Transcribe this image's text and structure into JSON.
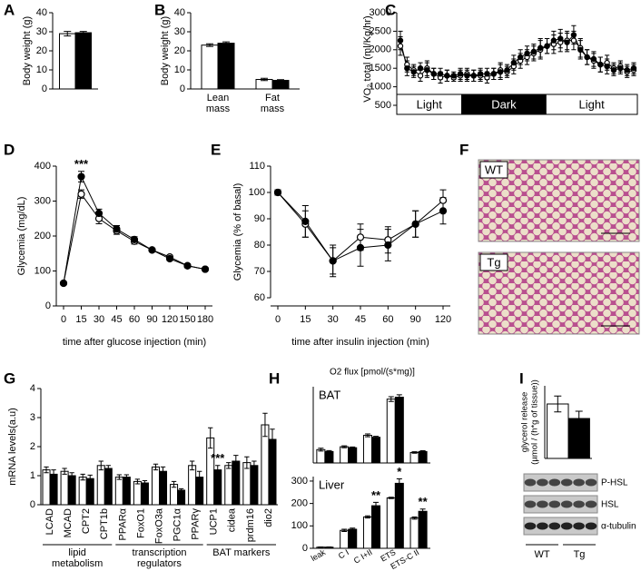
{
  "chart_data": [
    {
      "panel": "A",
      "type": "bar",
      "ylabel": "Body weight (g)",
      "ylim": [
        0,
        40
      ],
      "yticks": [
        0,
        10,
        20,
        30,
        40
      ],
      "series": [
        {
          "color": "#ffffff",
          "values": [
            29
          ],
          "errors": [
            1.2
          ]
        },
        {
          "color": "#000000",
          "values": [
            29.5
          ],
          "errors": [
            0.7
          ]
        }
      ]
    },
    {
      "panel": "B",
      "type": "bar",
      "ylabel": "Body weight (g)",
      "ylim": [
        0,
        40
      ],
      "yticks": [
        0,
        10,
        20,
        30,
        40
      ],
      "categories": [
        "Lean mass",
        "Fat mass"
      ],
      "series": [
        {
          "color": "#ffffff",
          "values": [
            23,
            5
          ],
          "errors": [
            0.7,
            0.6
          ]
        },
        {
          "color": "#000000",
          "values": [
            24,
            4.5
          ],
          "errors": [
            0.7,
            0.4
          ]
        }
      ]
    },
    {
      "panel": "C",
      "type": "line",
      "ylabel": "VO₂ total (ml/Kg/hr)",
      "ylim": [
        500,
        3000
      ],
      "yticks": [
        500,
        1000,
        1500,
        2000,
        2500,
        3000
      ],
      "phases": [
        "Light",
        "Dark",
        "Light"
      ],
      "series": [
        {
          "color": "#ffffff",
          "values": [
            2100,
            1600,
            1450,
            1300,
            1500,
            1350,
            1250,
            1300,
            1250,
            1300,
            1350,
            1300,
            1300,
            1250,
            1350,
            1450,
            1400,
            1550,
            1700,
            1800,
            1900,
            2000,
            2100,
            2150,
            2200,
            2250,
            2250,
            2050,
            1800,
            1700,
            1600,
            1650,
            1500,
            1550,
            1400,
            1450
          ],
          "errors": [
            250,
            200,
            150,
            150,
            200,
            150,
            150,
            150,
            100,
            150,
            150,
            150,
            150,
            150,
            150,
            200,
            150,
            200,
            200,
            200,
            200,
            250,
            200,
            250,
            250,
            250,
            250,
            250,
            200,
            200,
            200,
            200,
            150,
            150,
            150,
            150
          ]
        },
        {
          "color": "#000000",
          "values": [
            2250,
            1500,
            1400,
            1500,
            1450,
            1350,
            1350,
            1300,
            1300,
            1350,
            1300,
            1300,
            1350,
            1350,
            1350,
            1400,
            1450,
            1650,
            1800,
            1900,
            1950,
            2050,
            2100,
            2250,
            2300,
            2200,
            2400,
            2000,
            1800,
            1750,
            1600,
            1550,
            1450,
            1500,
            1450,
            1500
          ],
          "errors": [
            250,
            200,
            150,
            150,
            200,
            150,
            150,
            150,
            100,
            150,
            150,
            150,
            150,
            150,
            150,
            200,
            150,
            200,
            200,
            200,
            200,
            250,
            200,
            250,
            250,
            250,
            250,
            250,
            200,
            200,
            200,
            200,
            150,
            150,
            150,
            150
          ]
        }
      ]
    },
    {
      "panel": "D",
      "type": "line",
      "ylabel": "Glycemia (mg/dL)",
      "xlabel": "time after glucose injection (min)",
      "ylim": [
        0,
        400
      ],
      "yticks": [
        0,
        100,
        200,
        300,
        400
      ],
      "categories": [
        "0",
        "15",
        "30",
        "45",
        "60",
        "90",
        "120",
        "150",
        "180"
      ],
      "annotations": [
        {
          "text": "***",
          "category": "15"
        }
      ],
      "series": [
        {
          "color": "#ffffff",
          "values": [
            65,
            320,
            250,
            215,
            185,
            160,
            140,
            115,
            105
          ],
          "errors": [
            5,
            12,
            15,
            10,
            8,
            5,
            5,
            5,
            5
          ]
        },
        {
          "color": "#000000",
          "values": [
            65,
            370,
            265,
            220,
            190,
            160,
            135,
            115,
            105
          ],
          "errors": [
            5,
            15,
            12,
            10,
            8,
            5,
            5,
            5,
            5
          ]
        }
      ]
    },
    {
      "panel": "E",
      "type": "line",
      "ylabel": "Glycemia (% of basal)",
      "xlabel": "time after insulin injection (min)",
      "ylim": [
        60,
        110
      ],
      "yticks": [
        60,
        70,
        80,
        90,
        100,
        110
      ],
      "categories": [
        "0",
        "15",
        "30",
        "45",
        "60",
        "90",
        "120"
      ],
      "series": [
        {
          "color": "#ffffff",
          "values": [
            100,
            88,
            74,
            83,
            82,
            88,
            97
          ],
          "errors": [
            1,
            5,
            5,
            5,
            5,
            5,
            4
          ]
        },
        {
          "color": "#000000",
          "values": [
            100,
            89,
            74,
            79,
            80,
            88,
            93
          ],
          "errors": [
            1,
            6,
            6,
            7,
            6,
            5,
            5
          ]
        }
      ]
    },
    {
      "panel": "F",
      "type": "image",
      "panels": [
        "WT",
        "Tg"
      ]
    },
    {
      "panel": "G",
      "type": "bar",
      "ylabel": "mRNA levels(a.u)",
      "ylim": [
        0,
        4
      ],
      "yticks": [
        0,
        1,
        2,
        3,
        4
      ],
      "categories": [
        "LCAD",
        "MCAD",
        "CPT2",
        "CPT1b",
        "PPARα",
        "FoxO1",
        "FoxO3a",
        "PGC1α",
        "PPARγ",
        "UCP1",
        "cidea",
        "prdm16",
        "dio2"
      ],
      "groups": [
        {
          "label": "lipid metabolism",
          "from": "LCAD",
          "to": "CPT1b"
        },
        {
          "label": "transcription regulators",
          "from": "PPARα",
          "to": "PPARγ"
        },
        {
          "label": "BAT markers",
          "from": "UCP1",
          "to": "dio2"
        }
      ],
      "annotations": [
        {
          "text": "***",
          "category": "UCP1"
        }
      ],
      "series": [
        {
          "color": "#ffffff",
          "values": [
            1.2,
            1.15,
            0.95,
            1.35,
            0.95,
            0.8,
            1.3,
            0.7,
            1.35,
            2.3,
            1.35,
            1.45,
            2.75
          ],
          "errors": [
            0.1,
            0.1,
            0.1,
            0.15,
            0.08,
            0.08,
            0.1,
            0.1,
            0.15,
            0.35,
            0.1,
            0.2,
            0.4
          ]
        },
        {
          "color": "#000000",
          "values": [
            1.05,
            1.0,
            0.9,
            1.25,
            0.95,
            0.75,
            1.15,
            0.5,
            0.95,
            1.2,
            1.5,
            1.35,
            2.25
          ],
          "errors": [
            0.15,
            0.1,
            0.12,
            0.1,
            0.08,
            0.08,
            0.15,
            0.05,
            0.2,
            0.15,
            0.2,
            0.15,
            0.35
          ]
        }
      ]
    },
    {
      "panel": "H",
      "type": "bar",
      "title": "O2 flux [pmol/(s*mg)]",
      "label": "BAT",
      "ylim": [
        0,
        80
      ],
      "series": [
        {
          "color": "#ffffff",
          "values": [
            14,
            17,
            29,
            67,
            11
          ],
          "errors": [
            1.5,
            1,
            1.5,
            2.5,
            0.8
          ]
        },
        {
          "color": "#000000",
          "values": [
            12,
            16,
            27,
            69,
            12
          ],
          "errors": [
            1,
            0.8,
            1,
            2.5,
            0.8
          ]
        }
      ]
    },
    {
      "type": "bar",
      "label": "Liver",
      "ylim": [
        0,
        320
      ],
      "yticks": [
        0,
        100,
        200,
        300
      ],
      "categories": [
        "leak",
        "C I",
        "C I+II",
        "ETS",
        "ETS-C II"
      ],
      "annotations": [
        {
          "text": "**",
          "category": "C I+II"
        },
        {
          "text": "*",
          "category": "ETS"
        },
        {
          "text": "**",
          "category": "ETS-C II"
        }
      ],
      "series": [
        {
          "color": "#ffffff",
          "values": [
            5,
            80,
            140,
            225,
            135
          ],
          "errors": [
            1,
            5,
            5,
            3,
            5
          ]
        },
        {
          "color": "#000000",
          "values": [
            5,
            85,
            190,
            290,
            165
          ],
          "errors": [
            1,
            5,
            15,
            20,
            10
          ]
        }
      ]
    },
    {
      "panel": "I",
      "type": "bar",
      "ylabel": [
        "glycerol release",
        "(µmol / (h*g of tissue))"
      ],
      "ylim": [
        0,
        2
      ],
      "series": [
        {
          "color": "#ffffff",
          "values": [
            1.5
          ],
          "errors": [
            0.22
          ]
        },
        {
          "color": "#000000",
          "values": [
            1.1
          ],
          "errors": [
            0.2
          ]
        }
      ],
      "blot": {
        "rows": [
          "P-HSL",
          "HSL",
          "α-tubulin"
        ],
        "groups": [
          "WT",
          "Tg"
        ]
      }
    }
  ]
}
